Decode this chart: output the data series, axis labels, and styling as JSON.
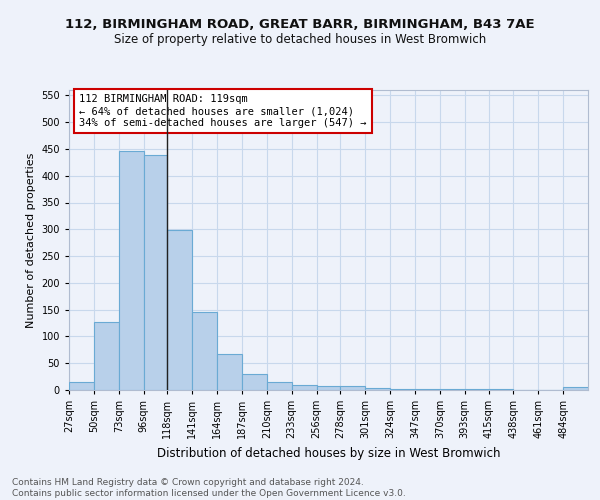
{
  "title1": "112, BIRMINGHAM ROAD, GREAT BARR, BIRMINGHAM, B43 7AE",
  "title2": "Size of property relative to detached houses in West Bromwich",
  "xlabel": "Distribution of detached houses by size in West Bromwich",
  "ylabel": "Number of detached properties",
  "footer1": "Contains HM Land Registry data © Crown copyright and database right 2024.",
  "footer2": "Contains public sector information licensed under the Open Government Licence v3.0.",
  "annotation_line1": "112 BIRMINGHAM ROAD: 119sqm",
  "annotation_line2": "← 64% of detached houses are smaller (1,024)",
  "annotation_line3": "34% of semi-detached houses are larger (547) →",
  "bar_labels": [
    "27sqm",
    "50sqm",
    "73sqm",
    "96sqm",
    "118sqm",
    "141sqm",
    "164sqm",
    "187sqm",
    "210sqm",
    "233sqm",
    "256sqm",
    "278sqm",
    "301sqm",
    "324sqm",
    "347sqm",
    "370sqm",
    "393sqm",
    "415sqm",
    "438sqm",
    "461sqm",
    "484sqm"
  ],
  "bar_values": [
    15,
    127,
    447,
    438,
    298,
    145,
    68,
    29,
    15,
    10,
    7,
    7,
    3,
    2,
    2,
    1,
    1,
    1,
    0,
    0,
    6
  ],
  "bar_edges": [
    27,
    50,
    73,
    96,
    118,
    141,
    164,
    187,
    210,
    233,
    256,
    278,
    301,
    324,
    347,
    370,
    393,
    415,
    438,
    461,
    484,
    507
  ],
  "bar_color": "#b8d0ea",
  "bar_edge_color": "#6aaad4",
  "vline_color": "#222222",
  "vline_x": 118,
  "ylim": [
    0,
    560
  ],
  "yticks": [
    0,
    50,
    100,
    150,
    200,
    250,
    300,
    350,
    400,
    450,
    500,
    550
  ],
  "grid_color": "#c8d8ec",
  "background_color": "#eef2fa",
  "annotation_box_color": "#cc0000",
  "title1_fontsize": 9.5,
  "title2_fontsize": 8.5,
  "xlabel_fontsize": 8.5,
  "ylabel_fontsize": 8,
  "tick_fontsize": 7,
  "annotation_fontsize": 7.5,
  "footer_fontsize": 6.5
}
